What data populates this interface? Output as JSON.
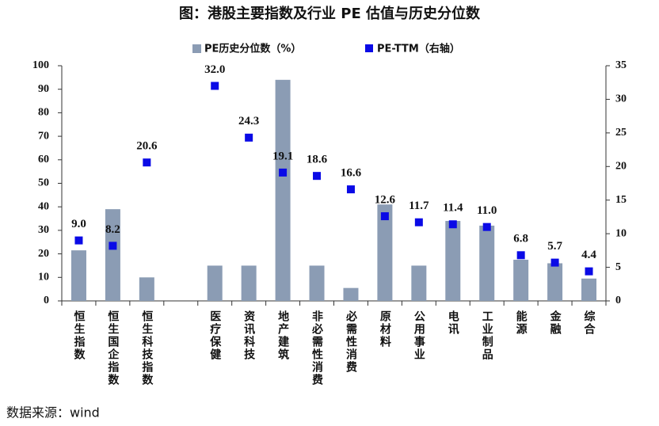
{
  "chart_data": {
    "type": "bar_scatter",
    "title": "图：港股主要指数及行业 PE 估值与历史分位数",
    "categories": [
      "恒生指数",
      "恒生国企指数",
      "恒生科技指数",
      null,
      "医疗保健",
      "资讯科技",
      "地产建筑",
      "非必需性消费",
      "必需性消费",
      "原材料",
      "公用事业",
      "电讯",
      "工业制品",
      "能源",
      "金融",
      "综合"
    ],
    "series": [
      {
        "name": "PE历史分位数（%）",
        "type": "bar",
        "color": "#8b9cb4",
        "values": [
          21.5,
          39,
          10,
          null,
          15,
          15,
          94,
          15,
          5.5,
          41,
          15,
          34,
          32,
          17.5,
          16,
          9.5
        ]
      },
      {
        "name": "PE-TTM（右轴）",
        "type": "scatter",
        "axis": "y2",
        "color": "#0a0ae6",
        "values": [
          9.0,
          8.2,
          20.6,
          null,
          32.0,
          24.3,
          19.1,
          18.6,
          16.6,
          12.6,
          11.7,
          11.4,
          11.0,
          6.8,
          5.7,
          4.4
        ],
        "value_labels": [
          "9.0",
          "8.2",
          "20.6",
          null,
          "32.0",
          "24.3",
          "19.1",
          "18.6",
          "16.6",
          "12.6",
          "11.7",
          "11.4",
          "11.0",
          "6.8",
          "5.7",
          "4.4"
        ]
      }
    ],
    "ylim": [
      0,
      100
    ],
    "yticks": [
      0,
      10,
      20,
      30,
      40,
      50,
      60,
      70,
      80,
      90,
      100
    ],
    "y2lim": [
      0,
      35
    ],
    "y2ticks": [
      0,
      5,
      10,
      15,
      20,
      25,
      30,
      35
    ],
    "source": "数据来源：wind"
  }
}
